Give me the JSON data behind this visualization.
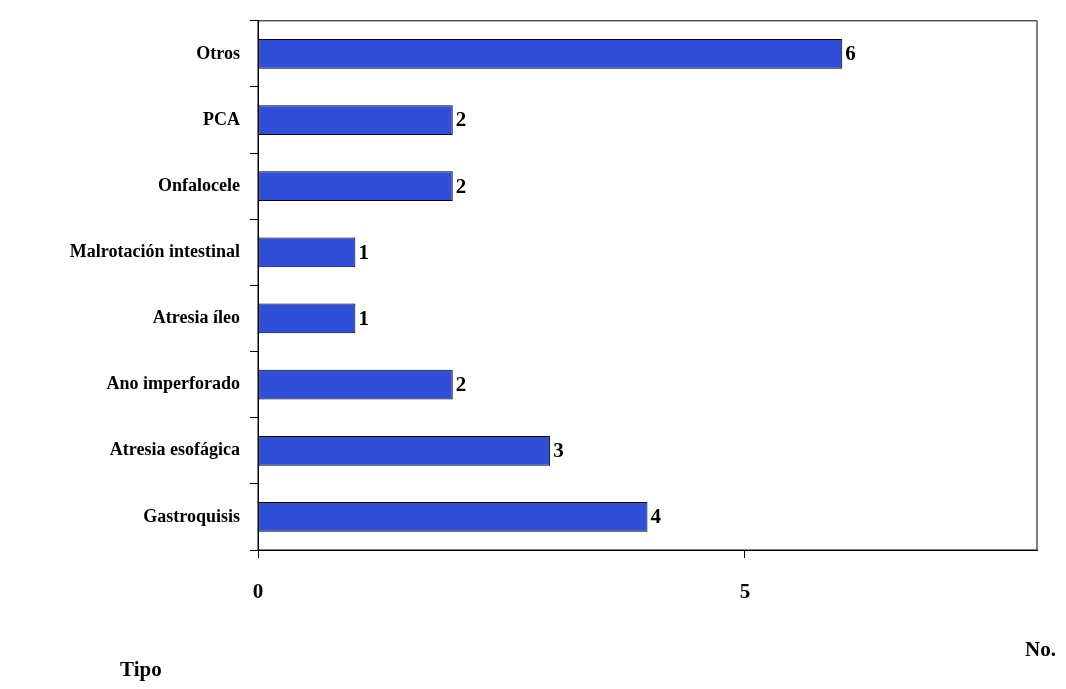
{
  "chart_data": {
    "type": "bar",
    "orientation": "horizontal",
    "categories": [
      "Otros",
      "PCA",
      "Onfalocele",
      "Malrotación intestinal",
      "Atresia íleo",
      "Ano imperforado",
      "Atresia esofágica",
      "Gastroquisis"
    ],
    "values": [
      6,
      2,
      2,
      1,
      1,
      2,
      3,
      4
    ],
    "color": "#2f4fd8",
    "xlim": [
      0,
      8
    ],
    "xticks": [
      0,
      5
    ],
    "xlabel": "No.",
    "ylabel": "Tipo",
    "data_labels": true,
    "grid": false,
    "legend": false
  }
}
